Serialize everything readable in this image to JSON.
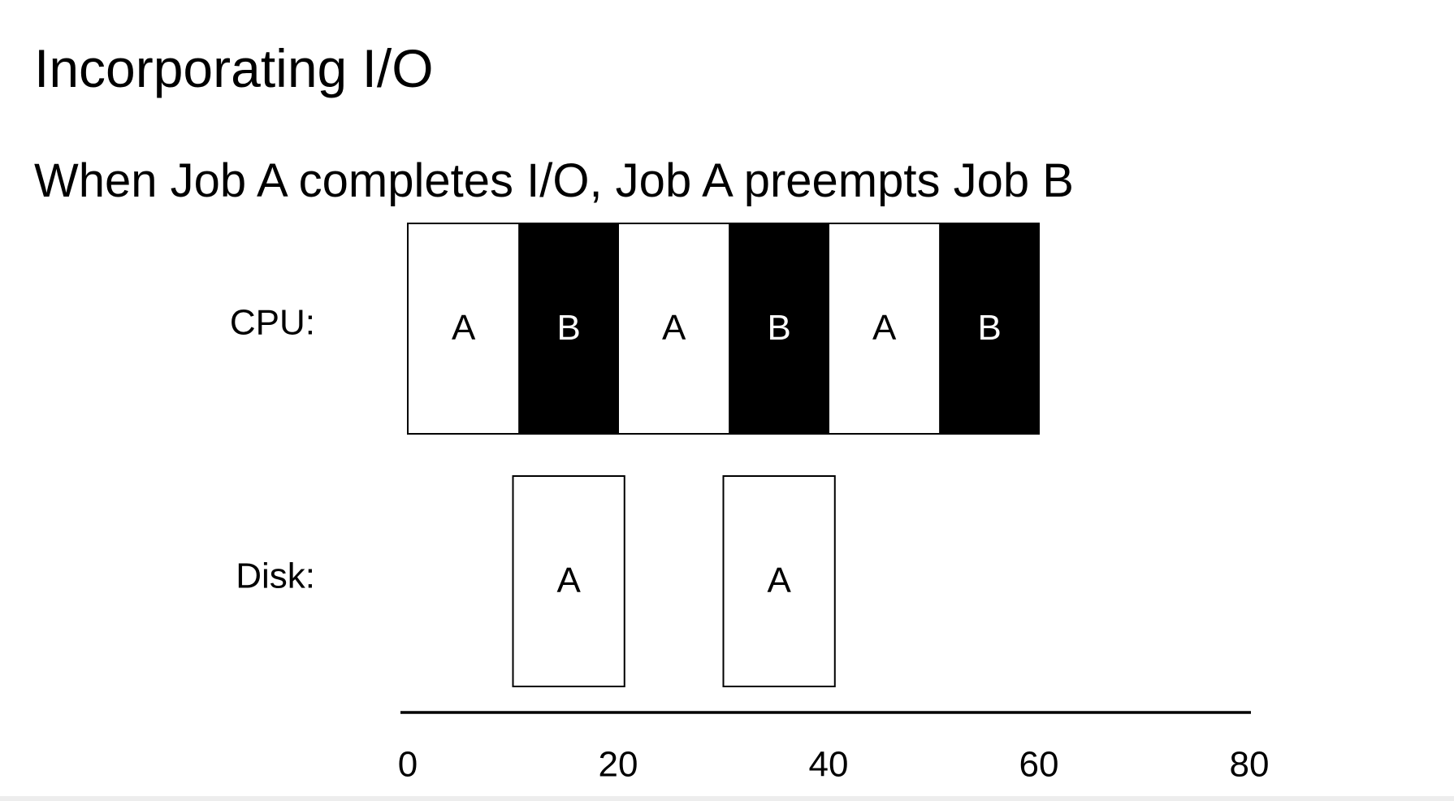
{
  "slide": {
    "title": "Incorporating I/O",
    "subtitle": "When Job A completes I/O, Job A preempts Job B"
  },
  "chart_data": {
    "type": "timeline",
    "rows": [
      {
        "label": "CPU:",
        "segments": [
          {
            "job": "A",
            "start": 0,
            "end": 10.6
          },
          {
            "job": "B",
            "start": 10.6,
            "end": 20
          },
          {
            "job": "A",
            "start": 20,
            "end": 30.6
          },
          {
            "job": "B",
            "start": 30.6,
            "end": 40
          },
          {
            "job": "A",
            "start": 40,
            "end": 50.6
          },
          {
            "job": "B",
            "start": 50.6,
            "end": 60
          }
        ]
      },
      {
        "label": "Disk:",
        "segments": [
          {
            "job": "A",
            "start": 10,
            "end": 20.6
          },
          {
            "job": "A",
            "start": 30,
            "end": 40.6
          }
        ]
      }
    ],
    "x_ticks": [
      0,
      20,
      40,
      60,
      80
    ],
    "xlim": [
      0,
      80
    ],
    "job_colors": {
      "A": "#ffffff",
      "B": "#000000"
    },
    "job_text_colors": {
      "A": "#000000",
      "B": "#ffffff"
    },
    "outline_color": "#000000"
  }
}
